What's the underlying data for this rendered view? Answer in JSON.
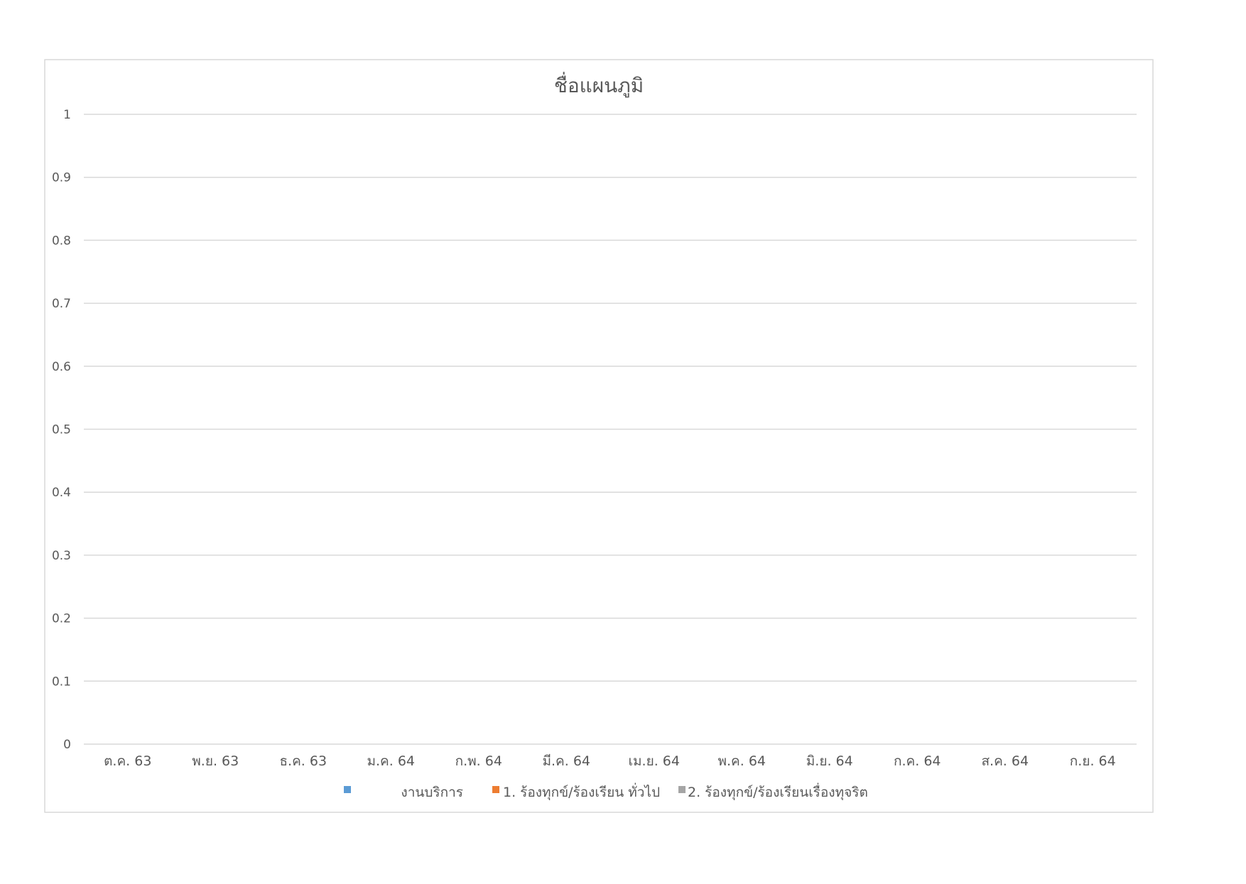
{
  "chart_data": {
    "type": "bar",
    "title": "ชื่อแผนภูมิ",
    "xlabel": "",
    "ylabel": "",
    "categories": [
      "ต.ค. 63",
      "พ.ย. 63",
      "ธ.ค. 63",
      "ม.ค. 64",
      "ก.พ. 64",
      "มี.ค. 64",
      "เม.ย. 64",
      "พ.ค. 64",
      "มิ.ย. 64",
      "ก.ค. 64",
      "ส.ค. 64",
      "ก.ย. 64"
    ],
    "ylim": [
      0,
      1
    ],
    "yticks": [
      "0",
      "0.1",
      "0.2",
      "0.3",
      "0.4",
      "0.5",
      "0.6",
      "0.7",
      "0.8",
      "0.9",
      "1"
    ],
    "grid": true,
    "legend_position": "bottom",
    "series": [
      {
        "name": "งานบริการ",
        "color": "#5B9BD5",
        "values": [
          null,
          null,
          null,
          null,
          null,
          null,
          null,
          null,
          null,
          null,
          null,
          null
        ]
      },
      {
        "name": "1. ร้องทุกข์/ร้องเรียน ทั่วไป",
        "color": "#ED7D31",
        "values": [
          null,
          null,
          null,
          null,
          null,
          null,
          null,
          null,
          null,
          null,
          null,
          null
        ]
      },
      {
        "name": "2. ร้องทุกข์/ร้องเรียนเรื่องทุจริต",
        "color": "#A5A5A5",
        "values": [
          null,
          null,
          null,
          null,
          null,
          null,
          null,
          null,
          null,
          null,
          null,
          null
        ]
      }
    ]
  }
}
